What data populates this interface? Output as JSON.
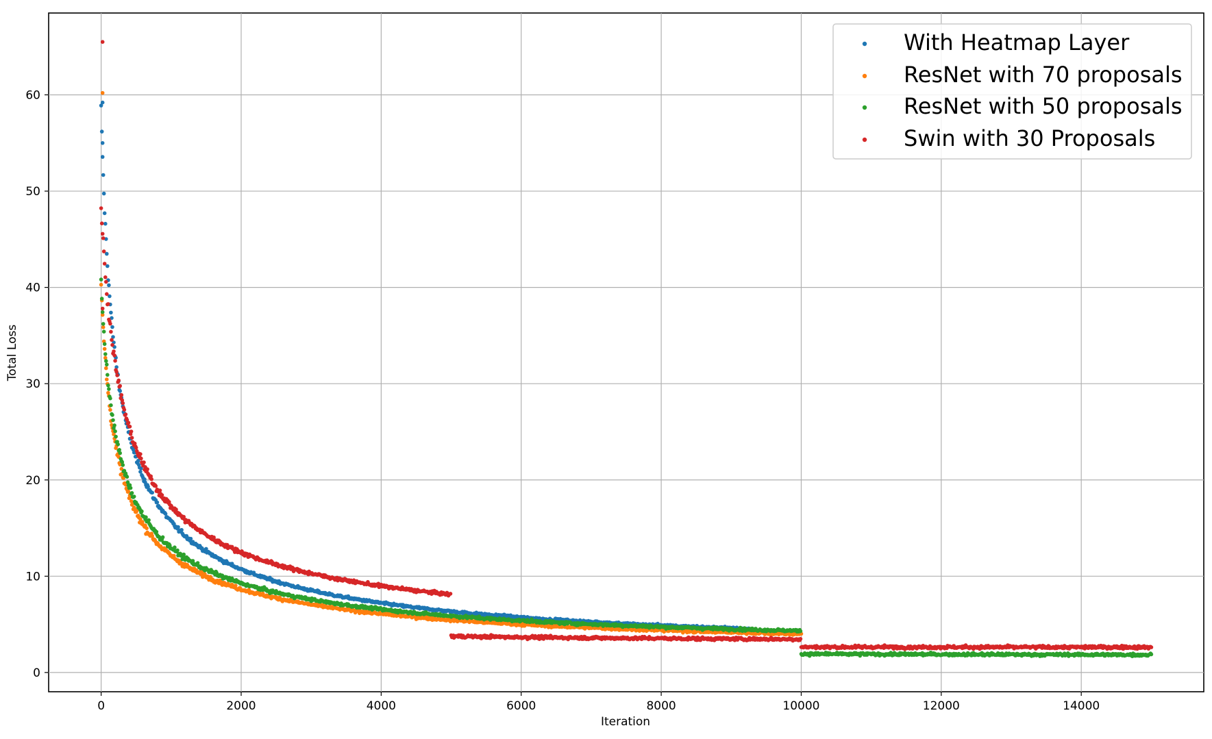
{
  "chart_data": {
    "type": "scatter",
    "title": "",
    "xlabel": "Iteration",
    "ylabel": "Total Loss",
    "xlim": [
      -750,
      15750
    ],
    "ylim": [
      -2,
      68.5
    ],
    "xticks": [
      0,
      2000,
      4000,
      6000,
      8000,
      10000,
      12000,
      14000
    ],
    "yticks": [
      0,
      10,
      20,
      30,
      40,
      50,
      60
    ],
    "grid": true,
    "legend_position": "top-right",
    "series": [
      {
        "name": "With Heatmap Layer",
        "color": "#1f77b4",
        "x_range": [
          0,
          9300
        ],
        "curve": {
          "a": 55.0,
          "b": 2.0,
          "c": 1.55,
          "d": 140,
          "p": 0.7
        },
        "plateaus": [],
        "noise": 0.18,
        "outliers": [
          [
            20,
            59.2
          ],
          [
            20,
            55.0
          ]
        ]
      },
      {
        "name": "ResNet with 70 proposals",
        "color": "#ff7f0e",
        "x_range": [
          0,
          10000
        ],
        "curve": {
          "a": 36.0,
          "b": 2.0,
          "c": 2.05,
          "d": 150,
          "p": 0.7
        },
        "plateaus": [],
        "noise": 0.2,
        "outliers": [
          [
            20,
            60.2
          ]
        ]
      },
      {
        "name": "ResNet with 50 proposals",
        "color": "#2ca02c",
        "x_range": [
          0,
          15000
        ],
        "curve": {
          "a": 36.0,
          "b": 2.0,
          "c": 2.2,
          "d": 170,
          "p": 0.7
        },
        "plateaus": [
          {
            "x": 10000,
            "y": 1.5
          }
        ],
        "noise": 0.2,
        "outliers": []
      },
      {
        "name": "Swin with 30 Proposals",
        "color": "#d62728",
        "x_range": [
          0,
          15000
        ],
        "curve": {
          "a": 45.0,
          "b": 1.0,
          "c": 2.5,
          "d": 200,
          "p": 0.65
        },
        "plateaus": [
          {
            "x": 5000,
            "y": 3.0
          },
          {
            "x": 10000,
            "y": 2.5
          }
        ],
        "noise": 0.22,
        "outliers": [
          [
            20,
            65.5
          ],
          [
            20,
            37.8
          ]
        ]
      }
    ]
  }
}
